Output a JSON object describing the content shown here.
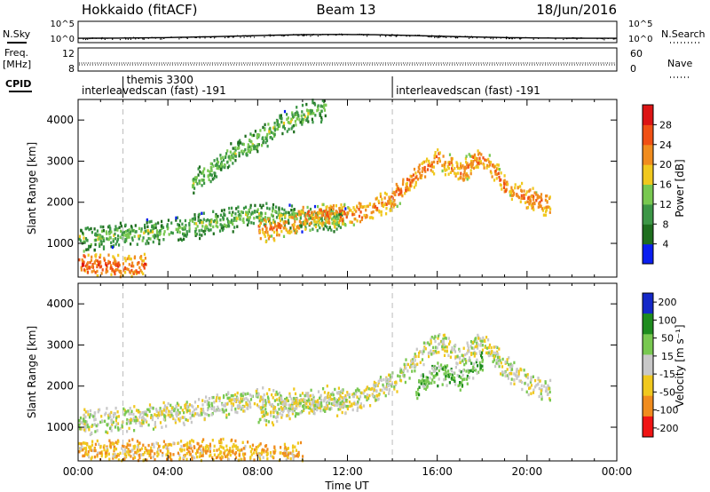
{
  "header": {
    "radar": "Hokkaido (fitACF)",
    "beam": "Beam 13",
    "date": "18/Jun/2016"
  },
  "param_panels": {
    "nsky_label": "N.Sky",
    "freq_label_1": "Freq.",
    "freq_label_2": "[MHz]",
    "cpid_label": "CPID",
    "nsky_ticks": [
      "10^5",
      "10^0"
    ],
    "freq_ticks": [
      "12",
      "8"
    ],
    "nsearch_label": "N.Search",
    "nave_label": "Nave",
    "nsearch_ticks": [
      "10^5",
      "10^0"
    ],
    "nave_ticks": [
      "60",
      "0"
    ]
  },
  "cpid_entries": [
    {
      "text": "themis 3300",
      "time_h": 2.0
    },
    {
      "text": "interleavedscan (fast) -191",
      "time_h": 0.0
    },
    {
      "text": "interleavedscan (fast) -191",
      "time_h": 14.0
    }
  ],
  "x_axis": {
    "label": "Time UT",
    "ticks": [
      "00:00",
      "04:00",
      "08:00",
      "12:00",
      "16:00",
      "20:00",
      "00:00"
    ]
  },
  "power_panel": {
    "ylabel": "Slant Range [km]",
    "yticks": [
      "1000",
      "2000",
      "3000",
      "4000"
    ],
    "colorbar_label": "Power [dB]",
    "colorbar_ticks": [
      "4",
      "8",
      "12",
      "16",
      "20",
      "24",
      "28"
    ]
  },
  "velocity_panel": {
    "ylabel": "Slant Range [km]",
    "yticks": [
      "1000",
      "2000",
      "3000",
      "4000"
    ],
    "colorbar_label": "Velocity [m s⁻¹]",
    "colorbar_ticks": [
      "200",
      "100",
      "50",
      "15",
      "-15",
      "-50",
      "-100",
      "-200"
    ]
  },
  "colors": {
    "power_scale": [
      "#0a1ef0",
      "#1e6e1e",
      "#3c9646",
      "#78c850",
      "#f0c81e",
      "#f08c1e",
      "#f05014",
      "#dc1414"
    ],
    "velocity_scale": [
      "#1428c8",
      "#1e8c1e",
      "#78c850",
      "#c8c8c8",
      "#f0c81e",
      "#f08c1e",
      "#f01414"
    ]
  },
  "chart_data": [
    {
      "type": "heatmap",
      "title": "Power",
      "xlabel": "Time UT",
      "ylabel": "Slant Range [km]",
      "xlim": [
        0,
        24
      ],
      "ylim": [
        180,
        4500
      ],
      "colorbar": {
        "label": "Power [dB]",
        "range": [
          0,
          32
        ]
      },
      "echo_bands": [
        {
          "t": [
            0,
            2,
            4,
            6,
            8,
            10,
            12
          ],
          "range_km": [
            1100,
            1200,
            1300,
            1500,
            1700,
            1600,
            1550
          ],
          "power_db": 14
        },
        {
          "t": [
            0,
            1,
            2,
            3
          ],
          "range_km": [
            500,
            450,
            400,
            450
          ],
          "power_db": 26
        },
        {
          "t": [
            8,
            9,
            10,
            11,
            12,
            13,
            14,
            15,
            16,
            17,
            18,
            19,
            20,
            21
          ],
          "range_km": [
            1300,
            1400,
            1600,
            1700,
            1650,
            1800,
            2100,
            2600,
            3100,
            2700,
            3100,
            2400,
            2100,
            1900
          ],
          "power_db": 24
        },
        {
          "t": [
            5,
            6,
            7,
            8,
            9,
            10,
            11
          ],
          "range_km": [
            2400,
            2800,
            3200,
            3500,
            3900,
            4100,
            4300
          ],
          "power_db": 14
        }
      ]
    },
    {
      "type": "heatmap",
      "title": "Velocity",
      "xlabel": "Time UT",
      "ylabel": "Slant Range [km]",
      "xlim": [
        0,
        24
      ],
      "ylim": [
        180,
        4500
      ],
      "colorbar": {
        "label": "Velocity [m s⁻¹]",
        "range": [
          -250,
          250
        ]
      },
      "echo_bands": [
        {
          "t": [
            0,
            2,
            4,
            6,
            8,
            10,
            12
          ],
          "range_km": [
            1100,
            1200,
            1300,
            1500,
            1700,
            1600,
            1550
          ],
          "velocity": 0
        },
        {
          "t": [
            0,
            2,
            4,
            6,
            8,
            10
          ],
          "range_km": [
            400,
            420,
            380,
            400,
            350,
            320
          ],
          "velocity": -40
        },
        {
          "t": [
            8,
            9,
            10,
            11,
            12,
            13,
            14,
            15,
            16,
            17,
            18,
            19,
            20,
            21
          ],
          "range_km": [
            1300,
            1400,
            1600,
            1700,
            1650,
            1800,
            2100,
            2600,
            3100,
            2700,
            3100,
            2400,
            2100,
            1900
          ],
          "velocity": 0
        },
        {
          "t": [
            15,
            16,
            17,
            18
          ],
          "range_km": [
            1900,
            2300,
            2200,
            2600
          ],
          "velocity": 40
        }
      ]
    }
  ]
}
